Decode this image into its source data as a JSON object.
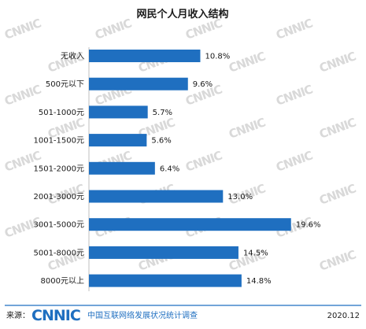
{
  "chart_data": {
    "type": "bar",
    "orientation": "horizontal",
    "title": "网民个人月收入结构",
    "categories": [
      "无收入",
      "500元以下",
      "501-1000元",
      "1001-1500元",
      "1501-2000元",
      "2001-3000元",
      "3001-5000元",
      "5001-8000元",
      "8000元以上"
    ],
    "values": [
      10.8,
      9.6,
      5.7,
      5.6,
      6.4,
      13.0,
      19.6,
      14.5,
      14.8
    ],
    "value_labels": [
      "10.8%",
      "9.6%",
      "5.7%",
      "5.6%",
      "6.4%",
      "13.0%",
      "19.6%",
      "14.5%",
      "14.8%"
    ],
    "xlim": [
      0,
      20
    ],
    "grid": false,
    "bar_color": "#1f6fc0"
  },
  "watermark": {
    "text": "CNNIC"
  },
  "footer": {
    "source_label": "来源：",
    "logo_text": "CNNIC",
    "org_name": "中国互联网络发展状况统计调查",
    "date": "2020.12"
  },
  "colors": {
    "bar": "#1f6fc0",
    "logo": "#1f6fc0",
    "watermark": "#d9d9d9",
    "footer_rule": "#1f6fc0"
  }
}
